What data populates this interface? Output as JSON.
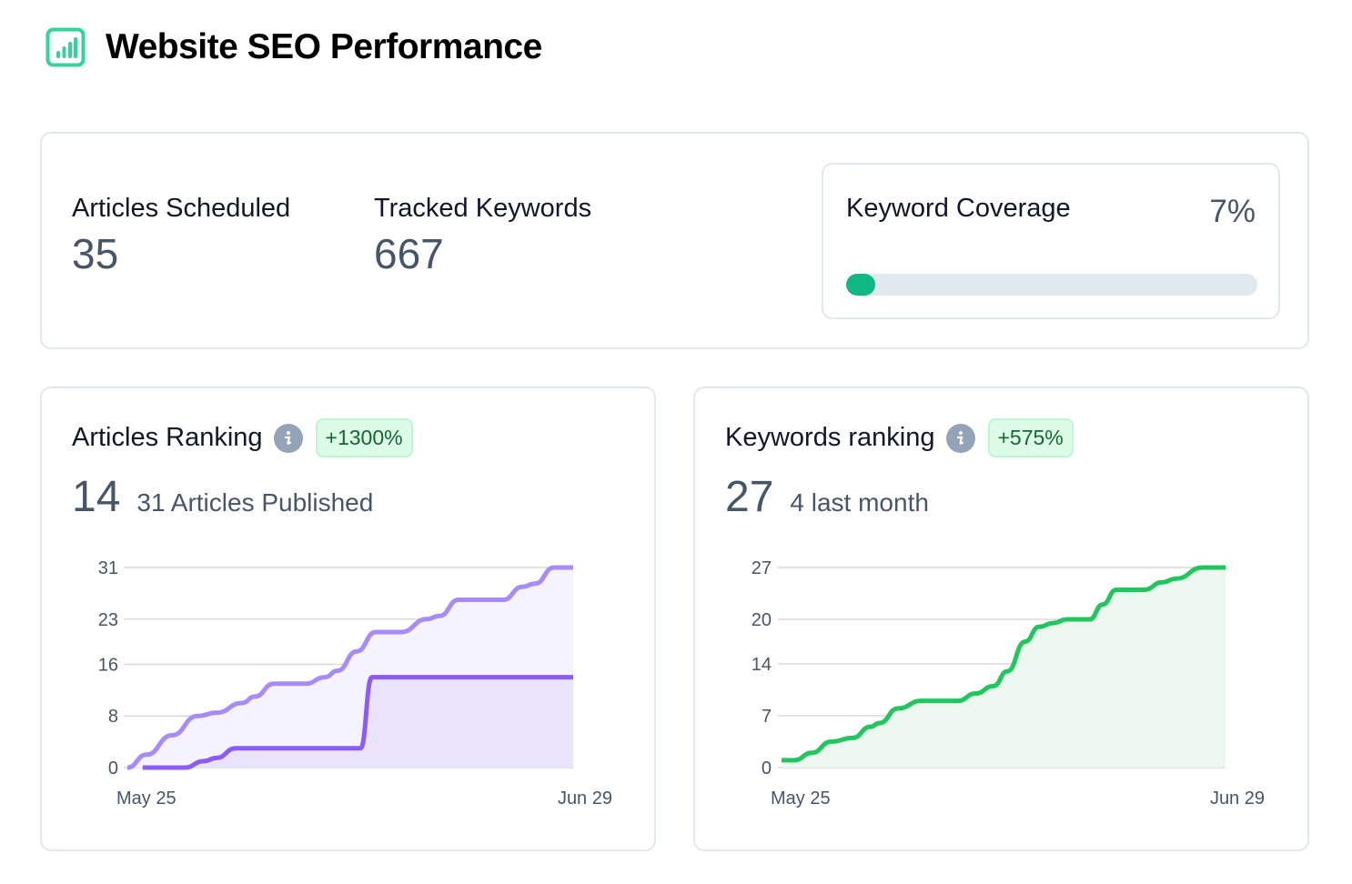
{
  "header": {
    "title": "Website SEO Performance",
    "icon": "bar-chart-icon",
    "accent_color": "#34d399"
  },
  "stats": {
    "articles_scheduled": {
      "label": "Articles Scheduled",
      "value": "35"
    },
    "tracked_keywords": {
      "label": "Tracked Keywords",
      "value": "667"
    },
    "keyword_coverage": {
      "label": "Keyword Coverage",
      "value_text": "7%",
      "percent": 7,
      "color": "#10b981"
    }
  },
  "cards": {
    "articles": {
      "title": "Articles Ranking",
      "info_icon": "info-icon",
      "badge": "+1300%",
      "metric": "14",
      "sub": "31 Articles Published"
    },
    "keywords": {
      "title": "Keywords ranking",
      "info_icon": "info-icon",
      "badge": "+575%",
      "metric": "27",
      "sub": "4 last month"
    }
  },
  "chart_data": [
    {
      "type": "area",
      "title": "Articles Ranking",
      "xlabel": "",
      "ylabel": "",
      "x_tick_labels": [
        "May 25",
        "Jun 29"
      ],
      "x_range_days": [
        0,
        35
      ],
      "y_ticks": [
        0,
        8,
        16,
        23,
        31
      ],
      "ylim": [
        0,
        31
      ],
      "grid": true,
      "legend": "none",
      "series": [
        {
          "name": "Articles Published",
          "color": "#a78bfa",
          "fill": "#f5f3ff",
          "x": [
            0,
            1.5,
            3.5,
            5.5,
            7,
            9,
            10,
            11.5,
            14,
            15.5,
            16.5,
            18,
            19.5,
            21.5,
            23.5,
            24.5,
            26,
            29.5,
            31,
            32,
            33.5,
            35
          ],
          "values": [
            0,
            2,
            5,
            8,
            8.5,
            10,
            11,
            13,
            13,
            14,
            15,
            18,
            21,
            21,
            23,
            23.5,
            26,
            26,
            28,
            28.5,
            31,
            31
          ]
        },
        {
          "name": "Articles Ranking",
          "color": "#8b5cf6",
          "fill": "#e9e3fb",
          "x": [
            1.2,
            4.5,
            6,
            7,
            8.5,
            10,
            17,
            18.3,
            19.2,
            20.3,
            35
          ],
          "values": [
            0,
            0,
            1,
            1.5,
            3,
            3,
            3,
            3,
            14,
            14,
            14
          ]
        }
      ]
    },
    {
      "type": "area",
      "title": "Keywords ranking",
      "xlabel": "",
      "ylabel": "",
      "x_tick_labels": [
        "May 25",
        "Jun 29"
      ],
      "x_range_days": [
        0,
        35
      ],
      "y_ticks": [
        0,
        7,
        14,
        20,
        27
      ],
      "ylim": [
        0,
        27
      ],
      "grid": true,
      "legend": "none",
      "series": [
        {
          "name": "Keywords ranking",
          "color": "#22c55e",
          "fill": "#ecf8ef",
          "x": [
            0,
            1,
            2.4,
            3.9,
            5.6,
            7,
            7.7,
            9.2,
            11,
            13.9,
            15.3,
            16.7,
            17.8,
            19.2,
            20.3,
            21.4,
            22.5,
            24.3,
            25.3,
            26.4,
            28.6,
            30,
            31.1,
            33.2,
            35
          ],
          "values": [
            1,
            1,
            2,
            3.5,
            4,
            5.5,
            6,
            8,
            9,
            9,
            10,
            11,
            13,
            17,
            19,
            19.5,
            20,
            20,
            22,
            24,
            24,
            25,
            25.5,
            27,
            27
          ]
        }
      ]
    }
  ]
}
